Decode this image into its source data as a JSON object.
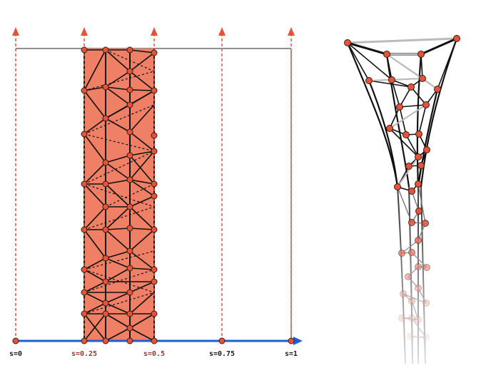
{
  "parameter_labels": [
    {
      "text": "s=0",
      "color": "#1a1a1a"
    },
    {
      "text": "s=0.25",
      "color": "#8b3a2e"
    },
    {
      "text": "s=0.5",
      "color": "#8b3a2e"
    },
    {
      "text": "s=0.75",
      "color": "#1a1a1a"
    },
    {
      "text": "s=1",
      "color": "#1a1a1a"
    }
  ],
  "colors": {
    "band_fill": "#f08065",
    "node_fill": "#e5533a",
    "guide_line": "#e5533a",
    "axis": "#1f5fd6",
    "edge": "#111111",
    "edge_dim": "#bbbbbb"
  },
  "icons": [
    "arrow-up-icon",
    "arrow-right-icon"
  ]
}
